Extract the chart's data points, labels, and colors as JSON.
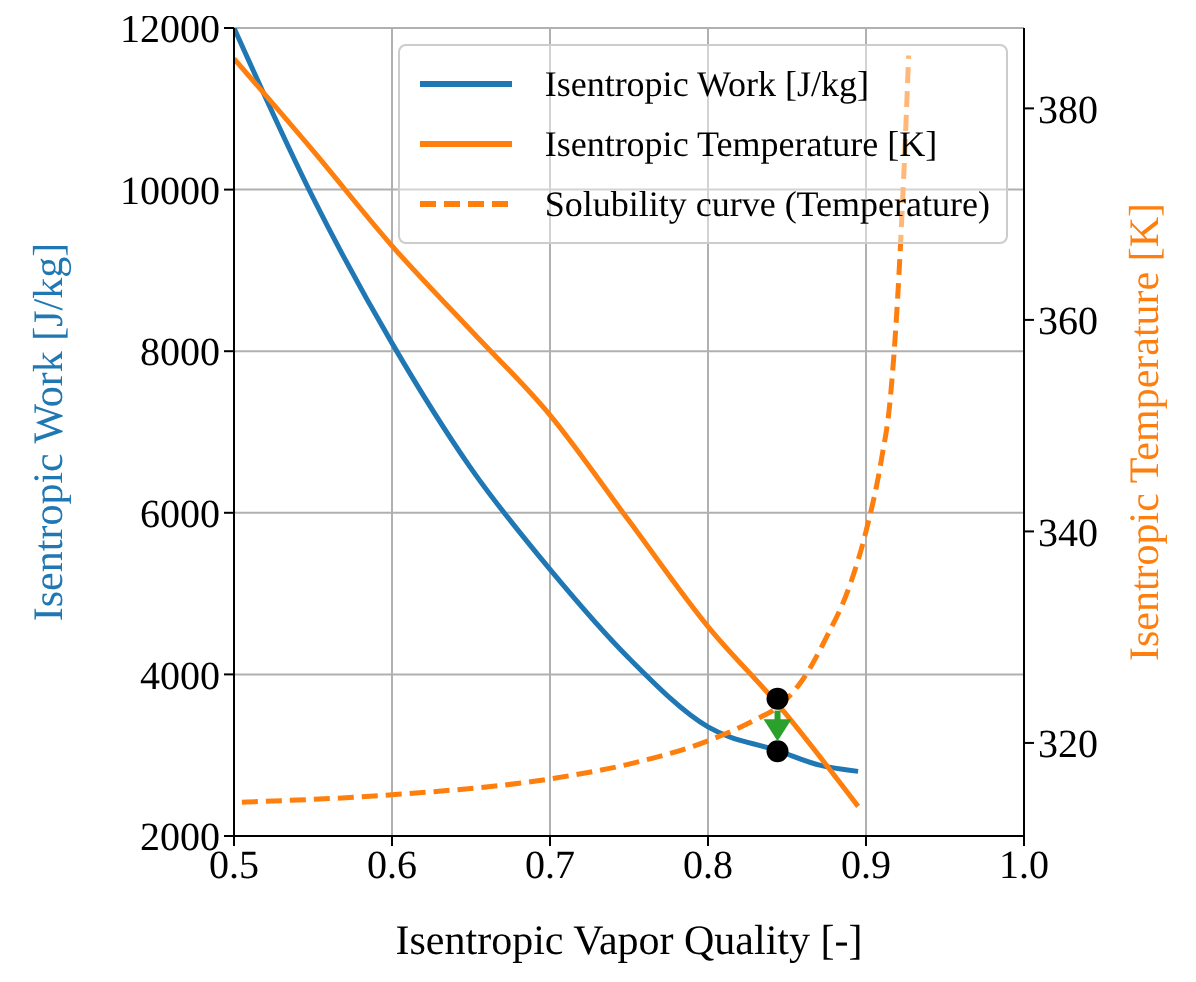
{
  "chart_data": {
    "type": "line",
    "xlabel": "Isentropic Vapor Quality [-]",
    "ylabel": "Isentropic Work [J/kg]",
    "y2label": "Isentropic Temperature [K]",
    "xlim": [
      0.5,
      1.0
    ],
    "xticks": [
      0.5,
      0.6,
      0.7,
      0.8,
      0.9,
      {
        "value": 1,
        "label": "1.0"
      }
    ],
    "ylim": [
      2000,
      12000
    ],
    "yticks": [
      2000,
      4000,
      6000,
      8000,
      10000,
      12000
    ],
    "y2lim": [
      311.2,
      387.6
    ],
    "y2ticks": [
      320,
      340,
      360,
      380
    ],
    "grid": true,
    "legend": "top right",
    "series": [
      {
        "name": "Isentropic Work [J/kg]",
        "color": "#1f77b4",
        "line_style": "solid",
        "x": [
          0.5,
          0.55,
          0.6,
          0.65,
          0.7,
          0.75,
          0.8,
          0.845,
          0.87,
          0.895
        ],
        "values": [
          12000,
          9900,
          8100,
          6550,
          5300,
          4200,
          3350,
          3050,
          2880,
          2800
        ]
      },
      {
        "name": "Isentropic Temperature [K]",
        "color": "#ff7f0e",
        "line_style": "solid",
        "axis": "y2",
        "x": [
          0.5,
          0.55,
          0.6,
          0.65,
          0.7,
          0.75,
          0.8,
          0.845,
          0.895
        ],
        "values": [
          384.7,
          376,
          367,
          359,
          351,
          341,
          331,
          323.5,
          314
        ]
      },
      {
        "name": "Solubility curve (Temperature)",
        "color": "#ff7f0e",
        "line_style": "dashed",
        "axis": "y2",
        "x": [
          0.505,
          0.6,
          0.7,
          0.75,
          0.8,
          0.83,
          0.845,
          0.86,
          0.875,
          0.89,
          0.9,
          0.91,
          0.915,
          0.92,
          0.924,
          0.927
        ],
        "values": [
          314.4,
          315.1,
          316.6,
          318,
          320.2,
          322.2,
          323.5,
          326,
          330,
          335,
          340,
          347,
          352,
          362,
          374,
          385
        ]
      },
      {
        "color": "#000000",
        "type": "scatter",
        "marker": "circle",
        "x": [
          0.844,
          0.844
        ],
        "values": [
          3700,
          3050
        ]
      }
    ]
  }
}
